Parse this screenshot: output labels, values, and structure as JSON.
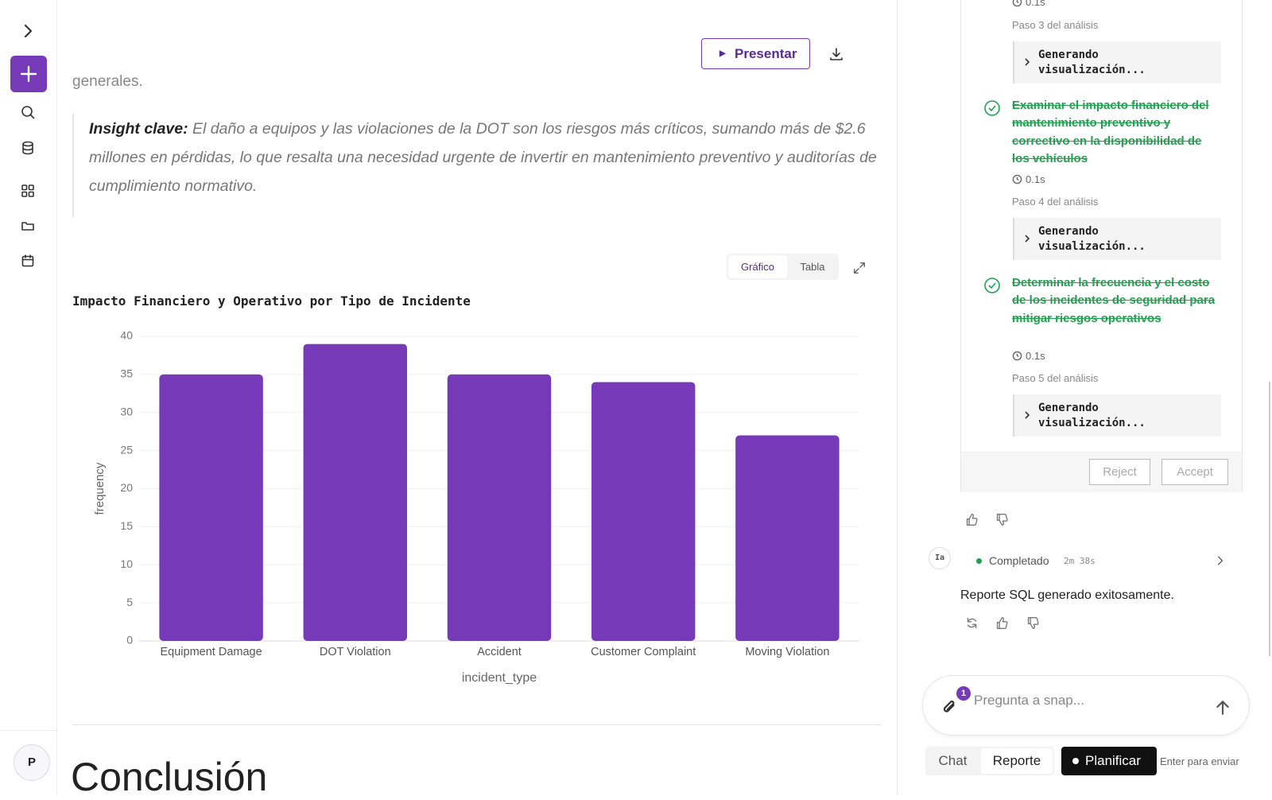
{
  "sidebar": {
    "avatar": "P"
  },
  "report": {
    "present_button": "Presentar",
    "prev_text": "generales.",
    "insight_label": "Insight clave:",
    "insight_text": "El daño a equipos y las violaciones de la DOT son los riesgos más críticos, sumando más de $2.6 millones en pérdidas, lo que resalta una necesidad urgente de invertir en mantenimiento preventivo y auditorías de cumplimiento normativo.",
    "view_tabs": [
      "Gráfico",
      "Tabla"
    ],
    "conclusion": "Conclusión"
  },
  "chart_data": {
    "type": "bar",
    "title": "Impacto Financiero y Operativo por Tipo de Incidente",
    "x_label": "incident_type",
    "y_label": "frequency",
    "categories": [
      "Equipment Damage",
      "DOT Violation",
      "Accident",
      "Customer Complaint",
      "Moving Violation"
    ],
    "values": [
      35,
      39,
      35,
      34,
      27
    ],
    "color": "#7639b8",
    "ylim": [
      0,
      40
    ],
    "yticks": [
      0,
      5,
      10,
      15,
      20,
      25,
      30,
      35,
      40
    ],
    "grid": true
  },
  "panel": {
    "top_time": "0.1s",
    "steps": [
      {
        "label": "Paso 3 del análisis",
        "detail": "Generando visualización..."
      },
      {
        "label": "Paso 4 del análisis",
        "detail": "Generando visualización..."
      },
      {
        "label": "Paso 5 del análisis",
        "detail": "Generando visualización..."
      }
    ],
    "tasks": [
      {
        "text": "Examinar el impacto financiero del mantenimiento preventivo y correctivo en la disponibilidad de los vehículos",
        "time": "0.1s"
      },
      {
        "text": "Determinar la frecuencia y el costo de los incidentes de seguridad para mitigar riesgos operativos",
        "time": "0.1s"
      }
    ],
    "reject": "Reject",
    "accept": "Accept",
    "completion": {
      "badge": "Ia",
      "status": "Completado",
      "duration": "2m 38s",
      "message": "Reporte SQL generado exitosamente."
    },
    "input": {
      "placeholder": "Pregunta a snap...",
      "badge": "1"
    },
    "modes": [
      "Chat",
      "Reporte",
      "Planificar"
    ],
    "hint": "Enter para enviar"
  }
}
